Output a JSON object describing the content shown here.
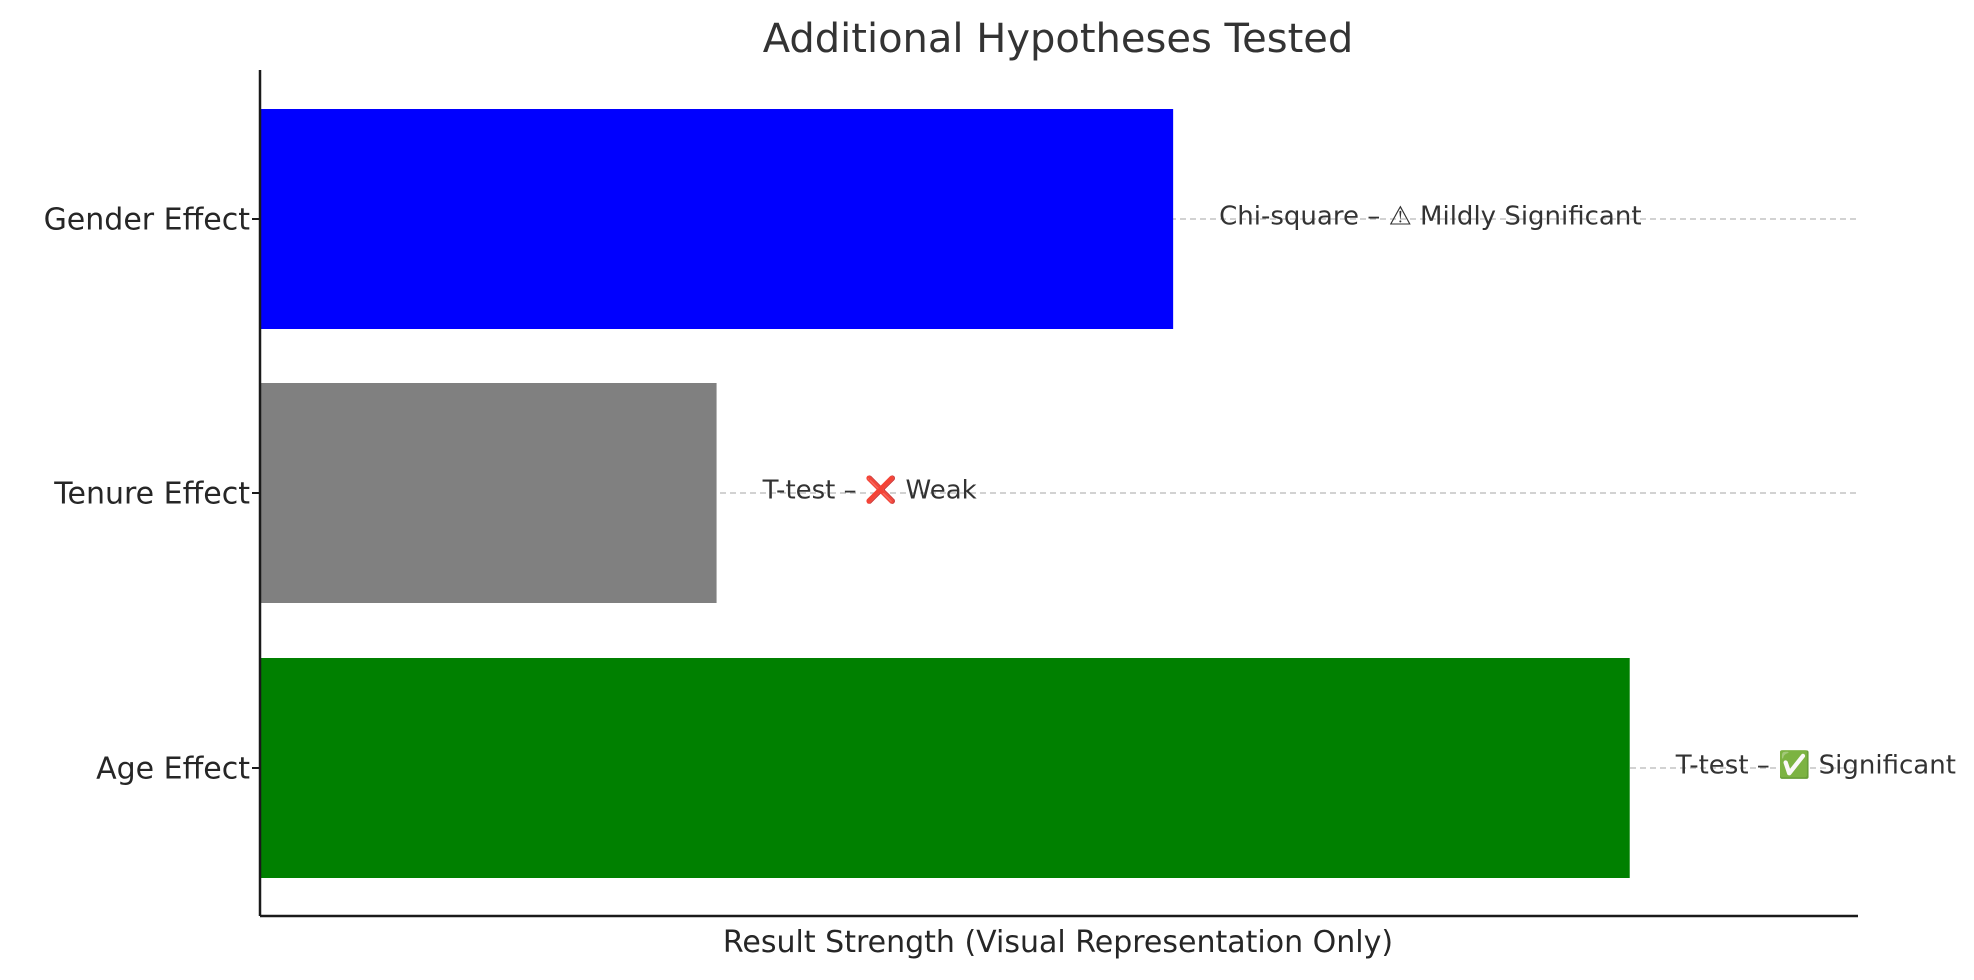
{
  "chart_data": {
    "type": "bar",
    "orientation": "horizontal",
    "title": "Additional Hypotheses Tested",
    "xlabel": "Result Strength (Visual Representation Only)",
    "ylabel": "",
    "xlim": [
      0,
      3.5
    ],
    "grid": "y-dashed",
    "categories": [
      "Gender Effect",
      "Tenure Effect",
      "Age Effect"
    ],
    "values": [
      2.0,
      1.0,
      3.0
    ],
    "colors": [
      "#0000ff",
      "#808080",
      "#008000"
    ],
    "labels": [
      "Chi-square – ⚠ Mildly Significant",
      "T-test – ❌ Weak",
      "T-test – ✅ Significant"
    ]
  }
}
